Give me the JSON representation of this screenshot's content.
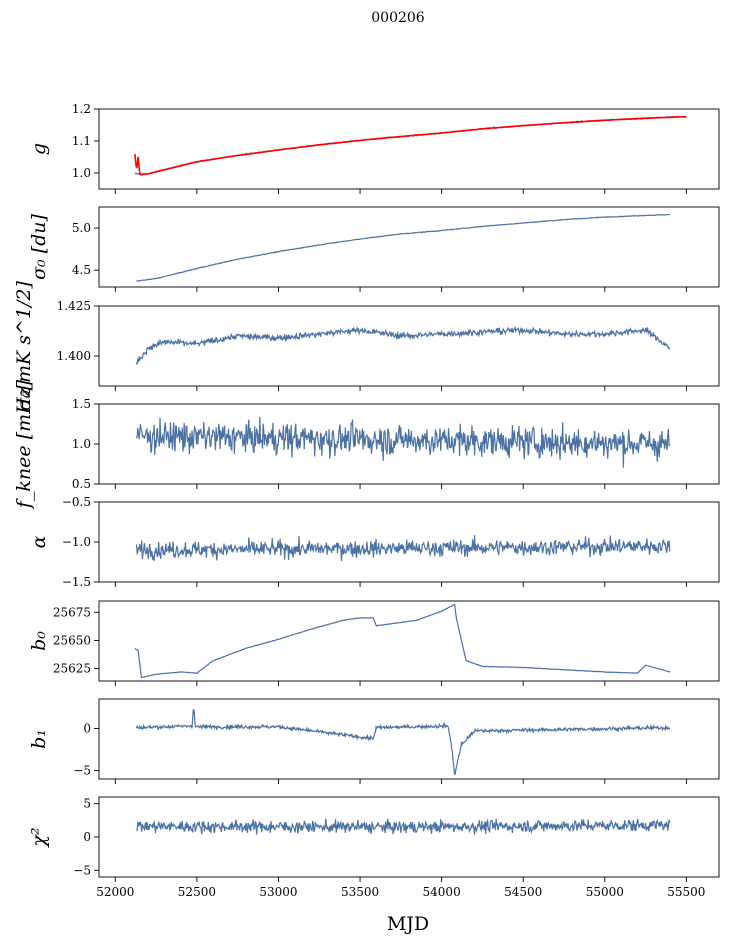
{
  "figure": {
    "suptitle": "000206",
    "xlabel": "MJD",
    "series_color": "#4c72a4",
    "fit_color": "#ff0000"
  },
  "chart_data": [
    {
      "type": "line",
      "name": "g",
      "ylabel": "g",
      "ylim": [
        0.95,
        1.2
      ],
      "yticks": [
        "1.0",
        "1.1",
        "1.2"
      ],
      "ytick_values": [
        1.0,
        1.1,
        1.2
      ],
      "xlim": [
        51900,
        55700
      ],
      "xticks_shown": false,
      "series": [
        {
          "name": "",
          "color": "#4c72a4",
          "x": [
            52120,
            52150,
            52200,
            52300,
            52500,
            52750,
            53000,
            53250,
            53500,
            53750,
            54000,
            54250,
            54500,
            54750,
            55000,
            55250,
            55450
          ],
          "y": [
            1.0,
            0.996,
            0.997,
            1.01,
            1.035,
            1.055,
            1.072,
            1.088,
            1.102,
            1.114,
            1.125,
            1.138,
            1.148,
            1.157,
            1.165,
            1.171,
            1.176
          ]
        },
        {
          "name": "",
          "color": "#ff0000",
          "x": [
            52120,
            52130,
            52140,
            52150,
            52200,
            52300,
            52500,
            52750,
            53000,
            53250,
            53500,
            53750,
            54000,
            54250,
            54500,
            54750,
            55000,
            55250,
            55500
          ],
          "y": [
            1.06,
            1.01,
            1.05,
            0.995,
            0.997,
            1.01,
            1.035,
            1.055,
            1.072,
            1.088,
            1.102,
            1.114,
            1.125,
            1.138,
            1.148,
            1.157,
            1.165,
            1.171,
            1.176
          ]
        }
      ]
    },
    {
      "type": "line",
      "name": "sigma0",
      "ylabel": "σ₀ [du]",
      "ylim": [
        4.3,
        5.25
      ],
      "yticks": [
        "4.5",
        "5.0"
      ],
      "ytick_values": [
        4.5,
        5.0
      ],
      "xlim": [
        51900,
        55700
      ],
      "xticks_shown": false,
      "series": [
        {
          "name": "",
          "color": "#4c72a4",
          "x": [
            52130,
            52250,
            52500,
            52750,
            53000,
            53250,
            53500,
            53750,
            54000,
            54250,
            54500,
            54750,
            55000,
            55250,
            55400
          ],
          "y": [
            4.37,
            4.4,
            4.52,
            4.63,
            4.72,
            4.8,
            4.87,
            4.93,
            4.97,
            5.02,
            5.06,
            5.1,
            5.13,
            5.15,
            5.16
          ]
        }
      ]
    },
    {
      "type": "line",
      "name": "sigma0_calibrated",
      "ylabel": "σ₀[mK s^1/2]",
      "ylim": [
        1.385,
        1.425
      ],
      "yticks": [
        "1.400",
        "1.425"
      ],
      "ytick_values": [
        1.4,
        1.425
      ],
      "xlim": [
        51900,
        55700
      ],
      "xticks_shown": false,
      "series": [
        {
          "name": "",
          "color": "#4c72a4",
          "x": [
            52130,
            52200,
            52300,
            52500,
            52750,
            53000,
            53250,
            53500,
            53750,
            54000,
            54250,
            54500,
            54750,
            55000,
            55250,
            55400
          ],
          "y": [
            1.396,
            1.404,
            1.407,
            1.406,
            1.41,
            1.409,
            1.411,
            1.413,
            1.41,
            1.411,
            1.412,
            1.413,
            1.411,
            1.411,
            1.413,
            1.404
          ]
        }
      ]
    },
    {
      "type": "line",
      "name": "fknee",
      "ylabel": "f_knee [mHz]",
      "ylim": [
        0.5,
        1.5
      ],
      "yticks": [
        "0.5",
        "1.0",
        "1.5"
      ],
      "ytick_values": [
        0.5,
        1.0,
        1.5
      ],
      "xlim": [
        51900,
        55700
      ],
      "xticks_shown": false,
      "series": [
        {
          "name": "",
          "color": "#4c72a4",
          "x": [
            52130,
            53800,
            55400
          ],
          "y": [
            1.1,
            1.05,
            1.0
          ]
        }
      ]
    },
    {
      "type": "line",
      "name": "alpha",
      "ylabel": "α",
      "ylim": [
        -1.5,
        -0.5
      ],
      "yticks": [
        "−1.5",
        "−1.0",
        "−0.5"
      ],
      "ytick_values": [
        -1.5,
        -1.0,
        -0.5
      ],
      "xlim": [
        51900,
        55700
      ],
      "xticks_shown": false,
      "series": [
        {
          "name": "",
          "color": "#4c72a4",
          "x": [
            52130,
            53600,
            55400
          ],
          "y": [
            -1.1,
            -1.08,
            -1.05
          ]
        }
      ]
    },
    {
      "type": "line",
      "name": "b0",
      "ylabel": "b₀",
      "ylim": [
        25614,
        25685
      ],
      "yticks": [
        "25625",
        "25650",
        "25675"
      ],
      "ytick_values": [
        25625,
        25650,
        25675
      ],
      "xlim": [
        51900,
        55700
      ],
      "xticks_shown": false,
      "series": [
        {
          "name": "",
          "color": "#4c72a4",
          "x": [
            52120,
            52140,
            52160,
            52250,
            52400,
            52500,
            52600,
            52800,
            53000,
            53200,
            53400,
            53500,
            53580,
            53600,
            53700,
            53850,
            54000,
            54080,
            54090,
            54150,
            54250,
            54500,
            55000,
            55200,
            55250,
            55300,
            55400
          ],
          "y": [
            25643,
            25641,
            25617,
            25620,
            25622,
            25621,
            25632,
            25643,
            25651,
            25660,
            25668,
            25670,
            25670,
            25663,
            25665,
            25668,
            25676,
            25682,
            25670,
            25632,
            25627,
            25626,
            25622,
            25621,
            25628,
            25626,
            25622
          ]
        }
      ]
    },
    {
      "type": "line",
      "name": "b1",
      "ylabel": "b₁",
      "ylim": [
        -6,
        3.5
      ],
      "yticks": [
        "−5",
        "0"
      ],
      "ytick_values": [
        -5,
        0
      ],
      "xlim": [
        51900,
        55700
      ],
      "xticks_shown": false,
      "series": [
        {
          "name": "",
          "color": "#4c72a4",
          "x": [
            52130,
            52470,
            52480,
            52490,
            53000,
            53580,
            53600,
            54040,
            54060,
            54080,
            54120,
            54200,
            55400
          ],
          "y": [
            0.1,
            0.3,
            2.8,
            0.2,
            0.2,
            -1.2,
            0.1,
            0.3,
            -2.0,
            -5.5,
            -2.0,
            -0.3,
            0.1
          ]
        }
      ]
    },
    {
      "type": "line",
      "name": "chi2",
      "ylabel": "χ²",
      "ylim": [
        -6,
        6
      ],
      "yticks": [
        "−5",
        "0",
        "5"
      ],
      "ytick_values": [
        -5,
        0,
        5
      ],
      "xlim": [
        51900,
        55700
      ],
      "xticks_shown": true,
      "xticks": [
        "52000",
        "52500",
        "53000",
        "53500",
        "54000",
        "54500",
        "55000",
        "55500"
      ],
      "xtick_values": [
        52000,
        52500,
        53000,
        53500,
        54000,
        54500,
        55000,
        55500
      ],
      "series": [
        {
          "name": "",
          "color": "#4c72a4",
          "x": [
            52130,
            53750,
            55400
          ],
          "y": [
            1.6,
            1.5,
            1.8
          ]
        }
      ]
    }
  ]
}
